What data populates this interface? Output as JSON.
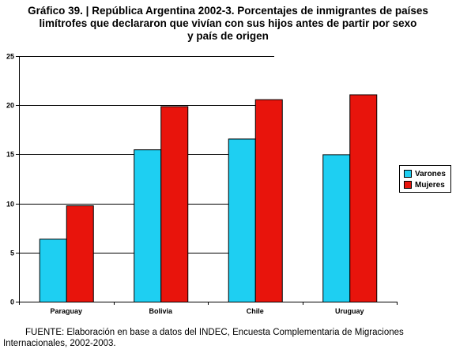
{
  "title": {
    "line1": "Gráfico 39. | República Argentina 2002-3. Porcentajes de inmigrantes de países",
    "line2": "limítrofes que declararon que vivían con sus hijos antes de partir por sexo",
    "line3": "y país de origen"
  },
  "footer": {
    "source": "FUENTE: Elaboración en base a datos del INDEC, Encuesta Complementaria de Migraciones Internacionales, 2002-2003."
  },
  "colors": {
    "varones": "#1ECFF2",
    "mujeres": "#E8140C",
    "axis": "#000000",
    "grid": "#000000"
  },
  "chart_data": {
    "type": "bar",
    "title": "Gráfico 39. | República Argentina 2002-3. Porcentajes de inmigrantes de países limítrofes que declararon que vivían con sus hijos antes de partir por sexo y país de origen",
    "xlabel": "",
    "ylabel": "",
    "ylim": [
      0,
      25
    ],
    "yticks": [
      0,
      5,
      10,
      15,
      20,
      25
    ],
    "grid": true,
    "legend_position": "right",
    "categories": [
      "Paraguay",
      "Bolivia",
      "Chile",
      "Uruguay"
    ],
    "series": [
      {
        "name": "Varones",
        "values": [
          6.4,
          15.5,
          16.6,
          15.0
        ]
      },
      {
        "name": "Mujeres",
        "values": [
          9.8,
          19.9,
          20.6,
          21.1
        ]
      }
    ]
  }
}
